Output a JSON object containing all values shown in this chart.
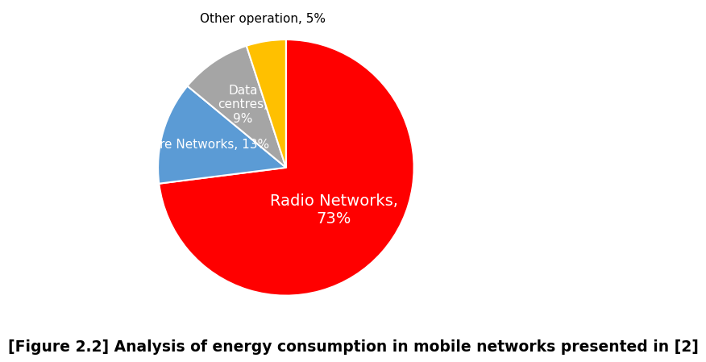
{
  "values": [
    73,
    13,
    9,
    5
  ],
  "colors": [
    "#FF0000",
    "#5B9BD5",
    "#A5A5A5",
    "#FFC000"
  ],
  "startangle": 90,
  "counterclock": false,
  "wedge_edgecolor": "white",
  "wedge_linewidth": 1.5,
  "label_radio": "Radio Networks,\n73%",
  "label_core": "Core Networks, 13%",
  "label_data": "Data\ncentres,\n9%",
  "label_other": "Other operation, 5%",
  "radio_color": "white",
  "core_color": "white",
  "data_color": "white",
  "other_color": "black",
  "radio_fontsize": 14,
  "core_fontsize": 11,
  "data_fontsize": 11,
  "other_fontsize": 11,
  "title": "[Figure 2.2] Analysis of energy consumption in mobile networks presented in [2]",
  "title_fontsize": 13.5,
  "title_fontweight": "bold",
  "background_color": "#ffffff"
}
